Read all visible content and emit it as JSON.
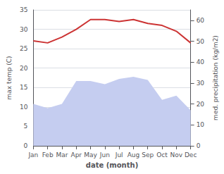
{
  "chart_data": {
    "type": "line",
    "categories": [
      "Jan",
      "Feb",
      "Mar",
      "Apr",
      "May",
      "Jun",
      "Jul",
      "Aug",
      "Sep",
      "Oct",
      "Nov",
      "Dec"
    ],
    "series": [
      {
        "type": "area",
        "color": "#c5cdf0",
        "axis": "y2",
        "values": [
          20,
          18,
          20,
          31,
          31,
          29.5,
          32,
          33,
          31.5,
          22,
          24,
          17
        ]
      },
      {
        "type": "line",
        "color": "#cc3333",
        "values": [
          27,
          26.5,
          28,
          30,
          32.5,
          32.5,
          32,
          32.5,
          31.5,
          31,
          29.5,
          26.5
        ]
      }
    ],
    "xlabel": "date (month)",
    "ylabel": "max temp (C)",
    "y2label": "med. precipitation (kg/m2)",
    "ylim": [
      0,
      35
    ],
    "yticks": [
      0,
      5,
      10,
      15,
      20,
      25,
      30,
      35
    ],
    "y2lim": [
      0,
      65
    ],
    "y2ticks": [
      0,
      10,
      20,
      30,
      40,
      50,
      60
    ],
    "grid": true
  }
}
